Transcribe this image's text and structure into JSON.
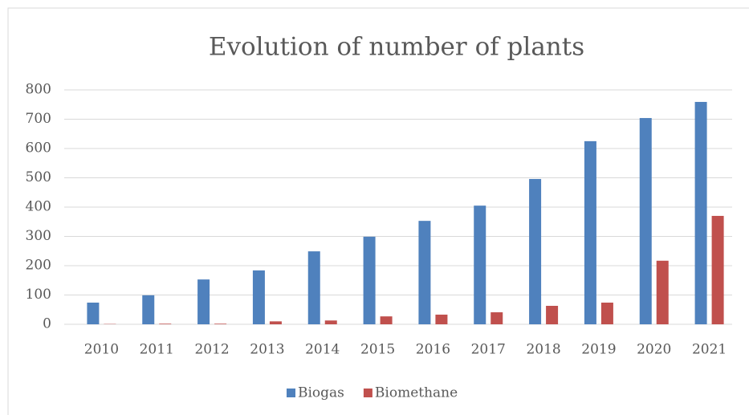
{
  "chart_data": {
    "type": "bar",
    "title": "Evolution of number of plants",
    "categories": [
      "2010",
      "2011",
      "2012",
      "2013",
      "2014",
      "2015",
      "2016",
      "2017",
      "2018",
      "2019",
      "2020",
      "2021"
    ],
    "series": [
      {
        "name": "Biogas",
        "color": "#4f81bd",
        "values": [
          74,
          99,
          153,
          184,
          249,
          299,
          353,
          405,
          496,
          625,
          704,
          759
        ]
      },
      {
        "name": "Biomethane",
        "color": "#c0504d",
        "values": [
          1,
          2,
          2,
          10,
          13,
          27,
          33,
          41,
          63,
          74,
          217,
          370
        ]
      }
    ],
    "ylim": [
      0,
      800
    ],
    "yticks": [
      0,
      100,
      200,
      300,
      400,
      500,
      600,
      700,
      800
    ],
    "grid": true,
    "legend": "bottom"
  }
}
